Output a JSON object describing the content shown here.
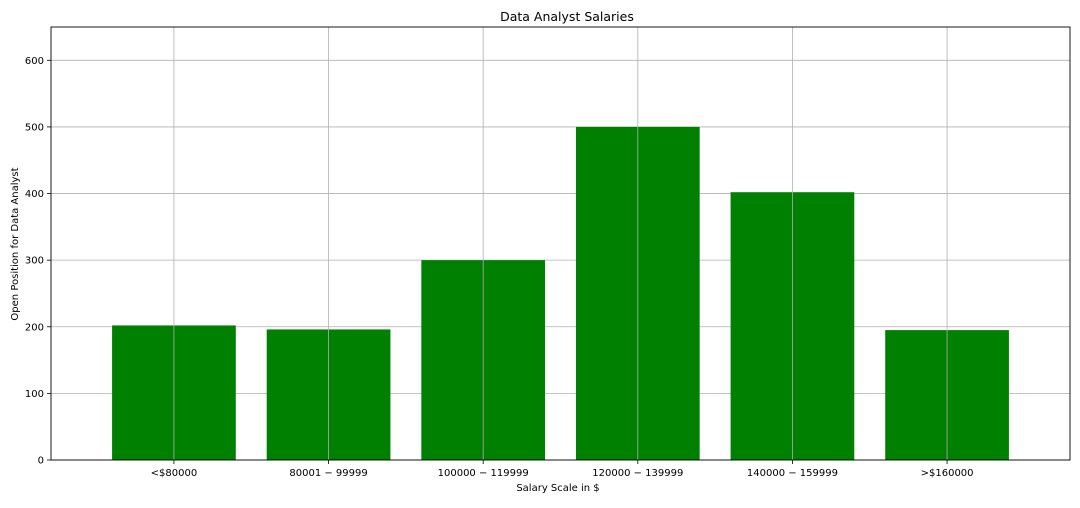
{
  "chart_data": {
    "type": "bar",
    "title": "Data Analyst Salaries",
    "xlabel": "Salary Scale in $",
    "ylabel": "Open Position for Data Analyst",
    "categories": [
      "<$80000",
      "$80001 - $99999",
      "$100000 - $119999",
      "$120000 - $139999",
      "$140000 - $159999",
      ">$160000"
    ],
    "category_labels_rendered": [
      "<$80000",
      "80001 − 99999",
      "100000 − 119999",
      "120000 − 139999",
      "140000 − 159999",
      ">$160000"
    ],
    "values": [
      202,
      196,
      300,
      500,
      402,
      195
    ],
    "ylim": [
      0,
      650
    ],
    "yticks": [
      0,
      100,
      200,
      300,
      400,
      500,
      600
    ],
    "grid": true,
    "bar_color": "#008000",
    "grid_color": "#b0b0b0"
  }
}
